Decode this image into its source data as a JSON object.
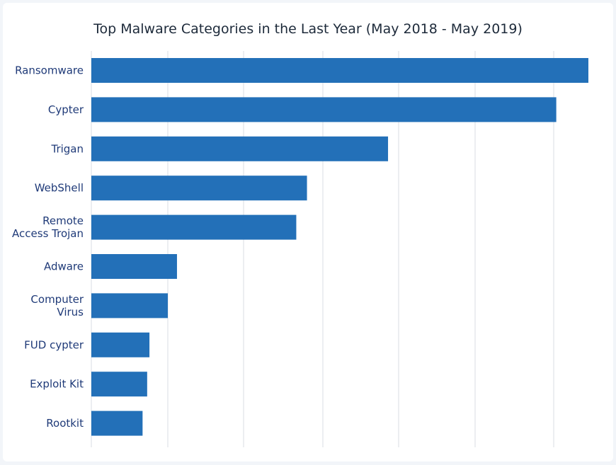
{
  "chart_data": {
    "type": "bar",
    "orientation": "horizontal",
    "title": "Top Malware Categories in the Last Year (May 2018 - May 2019)",
    "categories": [
      [
        "Ransomware"
      ],
      [
        "Cypter"
      ],
      [
        "Trigan"
      ],
      [
        "WebShell"
      ],
      [
        "Remote",
        "Access Trojan"
      ],
      [
        "Adware"
      ],
      [
        "Computer",
        "Virus"
      ],
      [
        "FUD cypter"
      ],
      [
        "Exploit Kit"
      ],
      [
        "Rootkit"
      ]
    ],
    "values": [
      650,
      608,
      388,
      282,
      268,
      112,
      100,
      76,
      73,
      67
    ],
    "xlim": [
      0,
      650
    ],
    "grid": true,
    "xticks_shown": false,
    "bar_color": "#2370b8"
  }
}
